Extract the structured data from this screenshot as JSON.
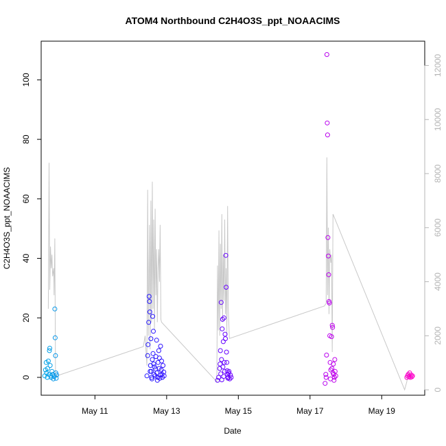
{
  "chart_data": {
    "type": "scatter",
    "title": "ATOM4 Northbound C2H4O3S_ppt_NOAACIMS",
    "xlabel": "Date",
    "ylabel": "C2H4O3S_ppt_NOAACIMS",
    "x_ticks": [
      "May 11",
      "May 13",
      "May 15",
      "May 17",
      "May 19"
    ],
    "x_tick_values": [
      11,
      13,
      15,
      17,
      19
    ],
    "xlim": [
      9.5,
      20.2
    ],
    "y_ticks": [
      "0",
      "20",
      "40",
      "60",
      "80",
      "100"
    ],
    "ylim": [
      -6,
      113
    ],
    "y2_ticks": [
      "0",
      "2000",
      "4000",
      "6000",
      "8000",
      "10000",
      "12000"
    ],
    "y2lim": [
      -200,
      12900
    ],
    "y2_color": "#b4b4b4",
    "grid": false,
    "series": [
      {
        "kind": "points",
        "axis": "left",
        "color_gradient": [
          "#00a5e6",
          "#1a1aff",
          "#6a00ff",
          "#b400f0",
          "#ff00c8"
        ],
        "points": [
          [
            9.6,
            0.5
          ],
          [
            9.62,
            2.5
          ],
          [
            9.64,
            5
          ],
          [
            9.65,
            1.5
          ],
          [
            9.67,
            0
          ],
          [
            9.68,
            3
          ],
          [
            9.7,
            5.5
          ],
          [
            9.72,
            1
          ],
          [
            9.73,
            9
          ],
          [
            9.74,
            9.8
          ],
          [
            9.75,
            4
          ],
          [
            9.77,
            0.5
          ],
          [
            9.78,
            0
          ],
          [
            9.8,
            2
          ],
          [
            9.82,
            1
          ],
          [
            9.84,
            -0.5
          ],
          [
            9.86,
            0.3
          ],
          [
            9.88,
            23
          ],
          [
            9.89,
            13.3
          ],
          [
            9.9,
            7.3
          ],
          [
            9.91,
            1.5
          ],
          [
            9.92,
            -0.3
          ],
          [
            9.93,
            0.8
          ],
          [
            12.45,
            0.5
          ],
          [
            12.47,
            7.3
          ],
          [
            12.48,
            11
          ],
          [
            12.5,
            18.5
          ],
          [
            12.51,
            27.2
          ],
          [
            12.52,
            25.5
          ],
          [
            12.53,
            22
          ],
          [
            12.55,
            4
          ],
          [
            12.56,
            13
          ],
          [
            12.57,
            2
          ],
          [
            12.58,
            0
          ],
          [
            12.6,
            6
          ],
          [
            12.61,
            20.5
          ],
          [
            12.62,
            8
          ],
          [
            12.63,
            15.5
          ],
          [
            12.65,
            1
          ],
          [
            12.66,
            3.5
          ],
          [
            12.68,
            0.5
          ],
          [
            12.7,
            7
          ],
          [
            12.72,
            12.5
          ],
          [
            12.73,
            1.5
          ],
          [
            12.75,
            0
          ],
          [
            12.76,
            5
          ],
          [
            12.78,
            9
          ],
          [
            12.79,
            3
          ],
          [
            12.8,
            6.5
          ],
          [
            12.82,
            0.8
          ],
          [
            12.83,
            10.5
          ],
          [
            12.85,
            2.5
          ],
          [
            12.87,
            1
          ],
          [
            12.88,
            0
          ],
          [
            12.9,
            4
          ],
          [
            12.92,
            1.8
          ],
          [
            12.93,
            0.5
          ],
          [
            12.54,
            2
          ],
          [
            12.59,
            -0.5
          ],
          [
            12.64,
            4.5
          ],
          [
            12.69,
            2.8
          ],
          [
            12.74,
            -1
          ],
          [
            12.81,
            -0.3
          ],
          [
            12.86,
            5.5
          ],
          [
            14.42,
            -1
          ],
          [
            14.45,
            0
          ],
          [
            14.48,
            3
          ],
          [
            14.5,
            9
          ],
          [
            14.52,
            25.2
          ],
          [
            14.53,
            6
          ],
          [
            14.55,
            16.3
          ],
          [
            14.56,
            19.5
          ],
          [
            14.58,
            12
          ],
          [
            14.6,
            20
          ],
          [
            14.62,
            2
          ],
          [
            14.63,
            14.5
          ],
          [
            14.64,
            13
          ],
          [
            14.65,
            41
          ],
          [
            14.66,
            30.3
          ],
          [
            14.67,
            8.5
          ],
          [
            14.68,
            5
          ],
          [
            14.7,
            1
          ],
          [
            14.72,
            0
          ],
          [
            14.74,
            2
          ],
          [
            14.76,
            -0.5
          ],
          [
            14.78,
            0.8
          ],
          [
            14.8,
            0
          ],
          [
            14.49,
            4.5
          ],
          [
            14.51,
            1.2
          ],
          [
            14.54,
            -0.8
          ],
          [
            14.57,
            3.5
          ],
          [
            14.59,
            0.3
          ],
          [
            14.61,
            5
          ],
          [
            14.69,
            2.2
          ],
          [
            14.71,
            -0.3
          ],
          [
            14.73,
            1.5
          ],
          [
            17.42,
            -2
          ],
          [
            17.44,
            1
          ],
          [
            17.45,
            0
          ],
          [
            17.46,
            7.5
          ],
          [
            17.47,
            108.5
          ],
          [
            17.48,
            85.5
          ],
          [
            17.49,
            81.5
          ],
          [
            17.5,
            47
          ],
          [
            17.51,
            40.8
          ],
          [
            17.52,
            34.5
          ],
          [
            17.53,
            25.5
          ],
          [
            17.54,
            25
          ],
          [
            17.55,
            14
          ],
          [
            17.56,
            5
          ],
          [
            17.58,
            2.5
          ],
          [
            17.6,
            13.7
          ],
          [
            17.62,
            17.5
          ],
          [
            17.63,
            16.8
          ],
          [
            17.65,
            4.5
          ],
          [
            17.66,
            1
          ],
          [
            17.68,
            0
          ],
          [
            17.7,
            2
          ],
          [
            17.72,
            0.5
          ],
          [
            17.57,
            -0.5
          ],
          [
            17.61,
            3
          ],
          [
            17.64,
            1.5
          ],
          [
            17.67,
            -1
          ],
          [
            17.69,
            6
          ],
          [
            19.7,
            0
          ],
          [
            19.72,
            0.5
          ],
          [
            19.74,
            1
          ],
          [
            19.76,
            0.3
          ],
          [
            19.78,
            1.5
          ],
          [
            19.8,
            0
          ],
          [
            19.82,
            0.8
          ],
          [
            19.84,
            0.2
          ],
          [
            19.86,
            0.5
          ]
        ]
      },
      {
        "kind": "line",
        "axis": "right",
        "color": "#c8c8c8",
        "points": [
          [
            9.7,
            3000
          ],
          [
            9.72,
            8400
          ],
          [
            9.74,
            3700
          ],
          [
            9.76,
            5300
          ],
          [
            9.78,
            4500
          ],
          [
            9.8,
            5000
          ],
          [
            9.82,
            4200
          ],
          [
            9.85,
            4500
          ],
          [
            9.86,
            3500
          ],
          [
            9.88,
            5600
          ],
          [
            9.9,
            500
          ],
          [
            12.35,
            1600
          ],
          [
            12.4,
            2000
          ],
          [
            12.45,
            900
          ],
          [
            12.47,
            7400
          ],
          [
            12.49,
            2000
          ],
          [
            12.52,
            6100
          ],
          [
            12.54,
            1500
          ],
          [
            12.56,
            7000
          ],
          [
            12.58,
            2500
          ],
          [
            12.6,
            7700
          ],
          [
            12.62,
            3000
          ],
          [
            12.64,
            6300
          ],
          [
            12.66,
            2200
          ],
          [
            12.68,
            6700
          ],
          [
            12.7,
            3500
          ],
          [
            12.72,
            5200
          ],
          [
            12.74,
            2500
          ],
          [
            12.76,
            4500
          ],
          [
            12.78,
            5200
          ],
          [
            12.8,
            4000
          ],
          [
            12.82,
            6100
          ],
          [
            12.84,
            2600
          ],
          [
            12.86,
            2500
          ],
          [
            14.4,
            300
          ],
          [
            14.42,
            4600
          ],
          [
            14.44,
            2200
          ],
          [
            14.46,
            5900
          ],
          [
            14.48,
            2000
          ],
          [
            14.5,
            5400
          ],
          [
            14.52,
            3000
          ],
          [
            14.54,
            6500
          ],
          [
            14.56,
            2500
          ],
          [
            14.58,
            5000
          ],
          [
            14.6,
            3300
          ],
          [
            14.62,
            6300
          ],
          [
            14.64,
            2800
          ],
          [
            14.66,
            4500
          ],
          [
            14.68,
            2000
          ],
          [
            14.7,
            6800
          ],
          [
            14.72,
            3000
          ],
          [
            14.75,
            1900
          ],
          [
            17.4,
            3100
          ],
          [
            17.45,
            3200
          ],
          [
            17.47,
            8600
          ],
          [
            17.49,
            3500
          ],
          [
            17.51,
            6000
          ],
          [
            17.53,
            2800
          ],
          [
            17.55,
            5200
          ],
          [
            17.58,
            4700
          ],
          [
            17.6,
            5000
          ],
          [
            17.62,
            1400
          ],
          [
            17.64,
            6500
          ],
          [
            19.64,
            0
          ],
          [
            19.7,
            300
          ],
          [
            19.74,
            700
          ],
          [
            19.76,
            400
          ],
          [
            19.78,
            600
          ],
          [
            19.8,
            450
          ],
          [
            19.82,
            550
          ],
          [
            19.85,
            500
          ],
          [
            19.87,
            480
          ]
        ]
      }
    ]
  }
}
